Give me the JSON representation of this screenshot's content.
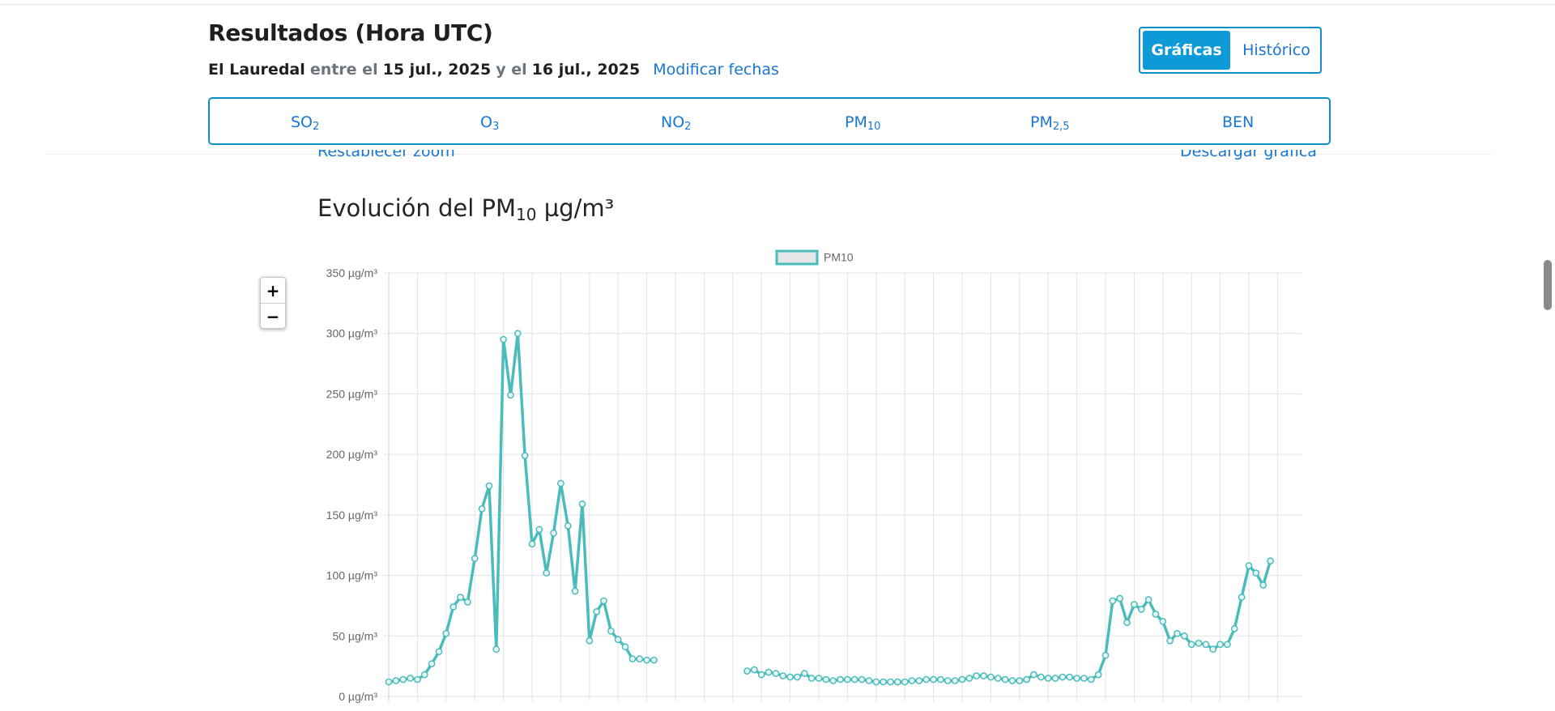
{
  "header": {
    "title": "Resultados (Hora UTC)",
    "station": "El Lauredal",
    "between": "entre el",
    "date_from": "15 jul., 2025",
    "and": "y el",
    "date_to": "16 jul., 2025",
    "modify_link": "Modificar fechas"
  },
  "view_toggle": {
    "active": "Gráficas",
    "inactive": "Histórico"
  },
  "pollutant_tabs": [
    {
      "base": "SO",
      "sub": "2"
    },
    {
      "base": "O",
      "sub": "3"
    },
    {
      "base": "NO",
      "sub": "2"
    },
    {
      "base": "PM",
      "sub": "10"
    },
    {
      "base": "PM",
      "sub": "2,5"
    },
    {
      "base": "BEN",
      "sub": ""
    }
  ],
  "chart_tools": {
    "reset_zoom": "Restablecer zoom",
    "download": "Descargar gráfica"
  },
  "zoom_controls": {
    "plus": "+",
    "minus": "−"
  },
  "chart_heading": {
    "prefix": "Evolución del PM",
    "sub": "10",
    "suffix": " µg/m³"
  },
  "chart_data": {
    "type": "line",
    "title": "Evolución del PM10 µg/m³",
    "legend": "top-center",
    "grid": true,
    "color": "#4bbcbc",
    "ylim": [
      0,
      350
    ],
    "y_ticks": [
      "0 µg/m³",
      "50 µg/m³",
      "100 µg/m³",
      "150 µg/m³",
      "200 µg/m³",
      "250 µg/m³",
      "300 µg/m³",
      "350 µg/m³"
    ],
    "series": [
      {
        "name": "PM10",
        "values": [
          12,
          13,
          14,
          15,
          14,
          18,
          27,
          37,
          52,
          74,
          82,
          78,
          114,
          155,
          174,
          39,
          295,
          249,
          300,
          199,
          126,
          138,
          102,
          135,
          176,
          141,
          87,
          159,
          46,
          70,
          79,
          54,
          47,
          41,
          31,
          31,
          30,
          30,
          null,
          null,
          null,
          null,
          null,
          null,
          null,
          null,
          null,
          null,
          null,
          null,
          21,
          22,
          18,
          20,
          19,
          17,
          16,
          16,
          19,
          15,
          15,
          14,
          13,
          14,
          14,
          14,
          14,
          13,
          12,
          12,
          12,
          12,
          12,
          13,
          13,
          14,
          14,
          14,
          13,
          13,
          14,
          15,
          17,
          17,
          16,
          15,
          14,
          13,
          13,
          14,
          18,
          16,
          15,
          15,
          16,
          16,
          15,
          15,
          14,
          18,
          34,
          79,
          81,
          61,
          76,
          72,
          80,
          68,
          62,
          46,
          52,
          50,
          43,
          44,
          43,
          39,
          43,
          43,
          56,
          82,
          108,
          102,
          92,
          112
        ]
      }
    ]
  }
}
